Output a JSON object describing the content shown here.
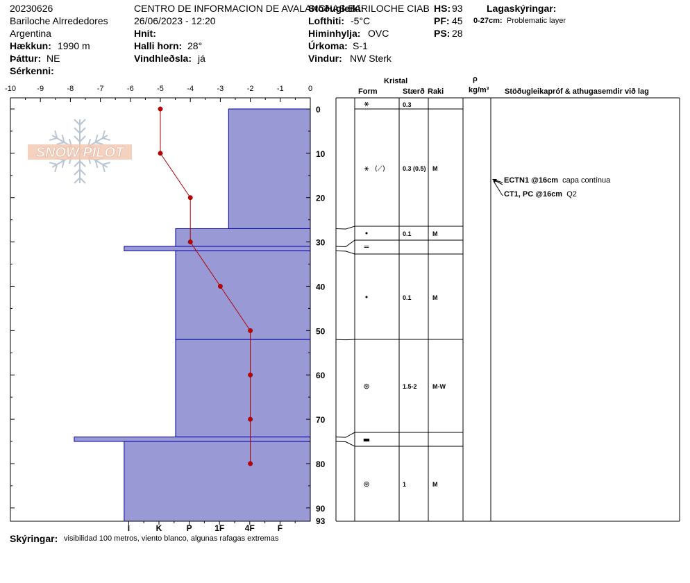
{
  "header": {
    "date_id": "20230626",
    "location": "Bariloche Alrrededores",
    "country": "Argentina",
    "elevation_label": "Hækkun:",
    "elevation_value": "1990 m",
    "aspect_label": "Þáttur:",
    "aspect_value": "NE",
    "specifics_label": "Sérkenni:",
    "org": "CENTRO DE INFORMACION DE AVALANCHAS BARILOCHE CIAB",
    "datetime": "26/06/2023 - 12:20",
    "coords_label": "Hnit:",
    "slope_label": "Halli horn:",
    "slope_value": "28°",
    "wind_loading_label": "Vindhleðsla:",
    "wind_loading_value": "já",
    "stability_label": "Stöðugleiki:",
    "air_temp_label": "Lofthiti:",
    "air_temp_value": "-5°C",
    "sky_label": "Himinhylja:",
    "sky_value": "OVC",
    "precip_label": "Úrkoma:",
    "precip_value": "S-1",
    "wind_label": "Vindur:",
    "wind_value": "NW Sterk",
    "hs_label": "HS:",
    "hs_value": "93",
    "pf_label": "PF:",
    "pf_value": "45",
    "ps_label": "PS:",
    "ps_value": "28",
    "layer_notes_label": "Lagaskýringar:",
    "layer_note_depth": "0-27cm:",
    "layer_note_text": "Problematic layer"
  },
  "footer": {
    "notes_label": "Skýringar:",
    "notes_text": "visibilidad 100 metros, viento blanco, algunas rafagas extremas"
  },
  "table_headers": {
    "crystal": "Kristal",
    "form": "Form",
    "size": "Stærð",
    "moisture": "Raki",
    "rho": "ρ",
    "density_unit": "kg/m³",
    "tests": "Stöðugleikapróf & athugasemdir við lag"
  },
  "stability_tests": [
    {
      "depth": 16,
      "code": "ECTN1 @16cm",
      "note": "capa contínua"
    },
    {
      "depth": 16,
      "code": "CT1, PC @16cm",
      "note": "Q2"
    }
  ],
  "colors": {
    "hardness_fill": "#9999d6",
    "hardness_line": "#0000a0",
    "temp_line": "#b00000",
    "temp_point": "#c00000"
  },
  "watermark": "SNOW PILOT",
  "chart_data": {
    "type": "snow-profile",
    "title": "",
    "depth_axis": {
      "min": 0,
      "max": 93,
      "ticks": [
        0,
        10,
        20,
        30,
        40,
        50,
        60,
        70,
        80,
        90
      ],
      "end_label": "93"
    },
    "temperature_axis": {
      "min": -10,
      "max": 0,
      "ticks": [
        -10,
        -9,
        -8,
        -7,
        -6,
        -5,
        -4,
        -3,
        -2,
        -1,
        0
      ]
    },
    "hardness_axis": {
      "labels": [
        "I",
        "K",
        "P",
        "1F",
        "4F",
        "F"
      ],
      "scale": {
        "F": 1,
        "4F": 2,
        "1F": 3,
        "P": 4,
        "K": 5,
        "I": 6
      }
    },
    "temperature_profile": [
      {
        "depth": 0,
        "temp": -5
      },
      {
        "depth": 10,
        "temp": -5
      },
      {
        "depth": 20,
        "temp": -4
      },
      {
        "depth": 30,
        "temp": -4
      },
      {
        "depth": 40,
        "temp": -3
      },
      {
        "depth": 50,
        "temp": -2
      },
      {
        "depth": 60,
        "temp": -2
      },
      {
        "depth": 70,
        "temp": -2
      },
      {
        "depth": 80,
        "temp": -2
      }
    ],
    "layers": [
      {
        "top": 0,
        "bottom": 27,
        "hardness": 2.7,
        "form": "⚹",
        "form_name": "decomposing-fragmented",
        "size": "0.3 (0.5)",
        "moisture": "M",
        "form2": "(⟋)"
      },
      {
        "top": 27,
        "bottom": 31,
        "hardness": 4.45,
        "form": "•",
        "form_name": "rounded-grains",
        "size": "0.1",
        "moisture": "M"
      },
      {
        "top": 31,
        "bottom": 32,
        "hardness": 6.15,
        "form": "=",
        "form_name": "crust",
        "size": "",
        "moisture": ""
      },
      {
        "top": 32,
        "bottom": 52,
        "hardness": 4.45,
        "form": "•",
        "form_name": "rounded-grains",
        "size": "0.1",
        "moisture": "M"
      },
      {
        "top": 52,
        "bottom": 74,
        "hardness": 4.45,
        "form": "⊛",
        "form_name": "melt-forms",
        "size": "1.5-2",
        "moisture": "M-W"
      },
      {
        "top": 74,
        "bottom": 75,
        "hardness": 7.8,
        "form": "▬",
        "form_name": "ice-layer",
        "size": "",
        "moisture": ""
      },
      {
        "top": 75,
        "bottom": 93,
        "hardness": 6.15,
        "form": "⊛",
        "form_name": "melt-forms",
        "size": "1",
        "moisture": "M"
      }
    ],
    "surface_layer": {
      "size": "0.3"
    }
  }
}
